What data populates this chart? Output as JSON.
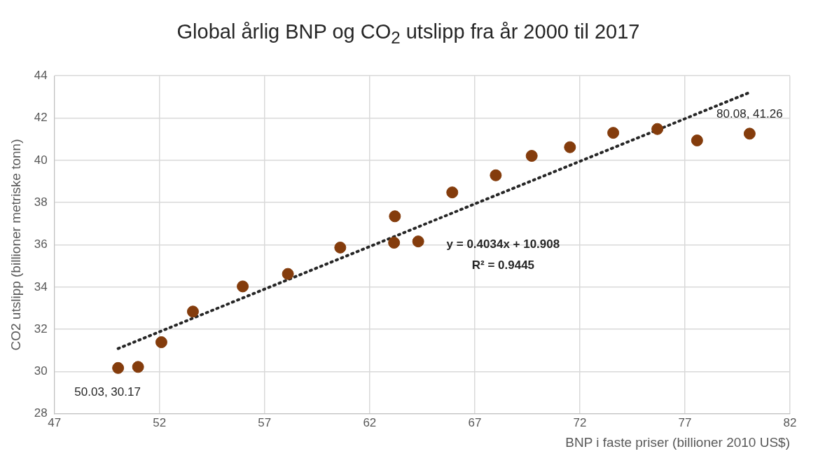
{
  "chart_data": {
    "type": "scatter",
    "title": "Global årlig BNP og CO$_{2}$ utslipp fra år 2000 til 2017",
    "xlabel": "BNP i faste priser (billioner 2010 US$)",
    "ylabel": "CO2 utslipp (billioner metriske tonn)",
    "xlim": [
      47,
      82
    ],
    "xticks": [
      47,
      52,
      57,
      62,
      67,
      72,
      77,
      82
    ],
    "ylim": [
      28,
      44
    ],
    "yticks": [
      28,
      30,
      32,
      34,
      36,
      38,
      40,
      42,
      44
    ],
    "grid": true,
    "legend": false,
    "marker": "circle",
    "annotations": [
      "y = 0.4034x + 10.908",
      "R² = 0.9445"
    ],
    "series": [
      {
        "color": "#843c0c",
        "x": [
          50.03,
          50.98,
          52.09,
          53.59,
          55.96,
          58.11,
          60.6,
          63.2,
          63.16,
          64.31,
          65.93,
          68.0,
          69.71,
          71.53,
          73.59,
          75.69,
          77.58,
          80.08
        ],
        "values": [
          30.17,
          30.22,
          31.39,
          32.84,
          34.03,
          34.62,
          35.87,
          37.35,
          36.1,
          36.16,
          38.48,
          39.29,
          40.21,
          40.62,
          41.3,
          41.48,
          40.94,
          41.26
        ],
        "value_labels": [
          "50.03, 30.17",
          null,
          null,
          null,
          null,
          null,
          null,
          null,
          null,
          null,
          null,
          null,
          null,
          null,
          null,
          null,
          null,
          "80.08, 41.26"
        ]
      },
      {
        "type": "line",
        "color": "#262626",
        "line_style": "dotted",
        "marker": "none",
        "x": [
          50.03,
          80.08
        ],
        "values": [
          31.09,
          43.21
        ]
      }
    ]
  }
}
